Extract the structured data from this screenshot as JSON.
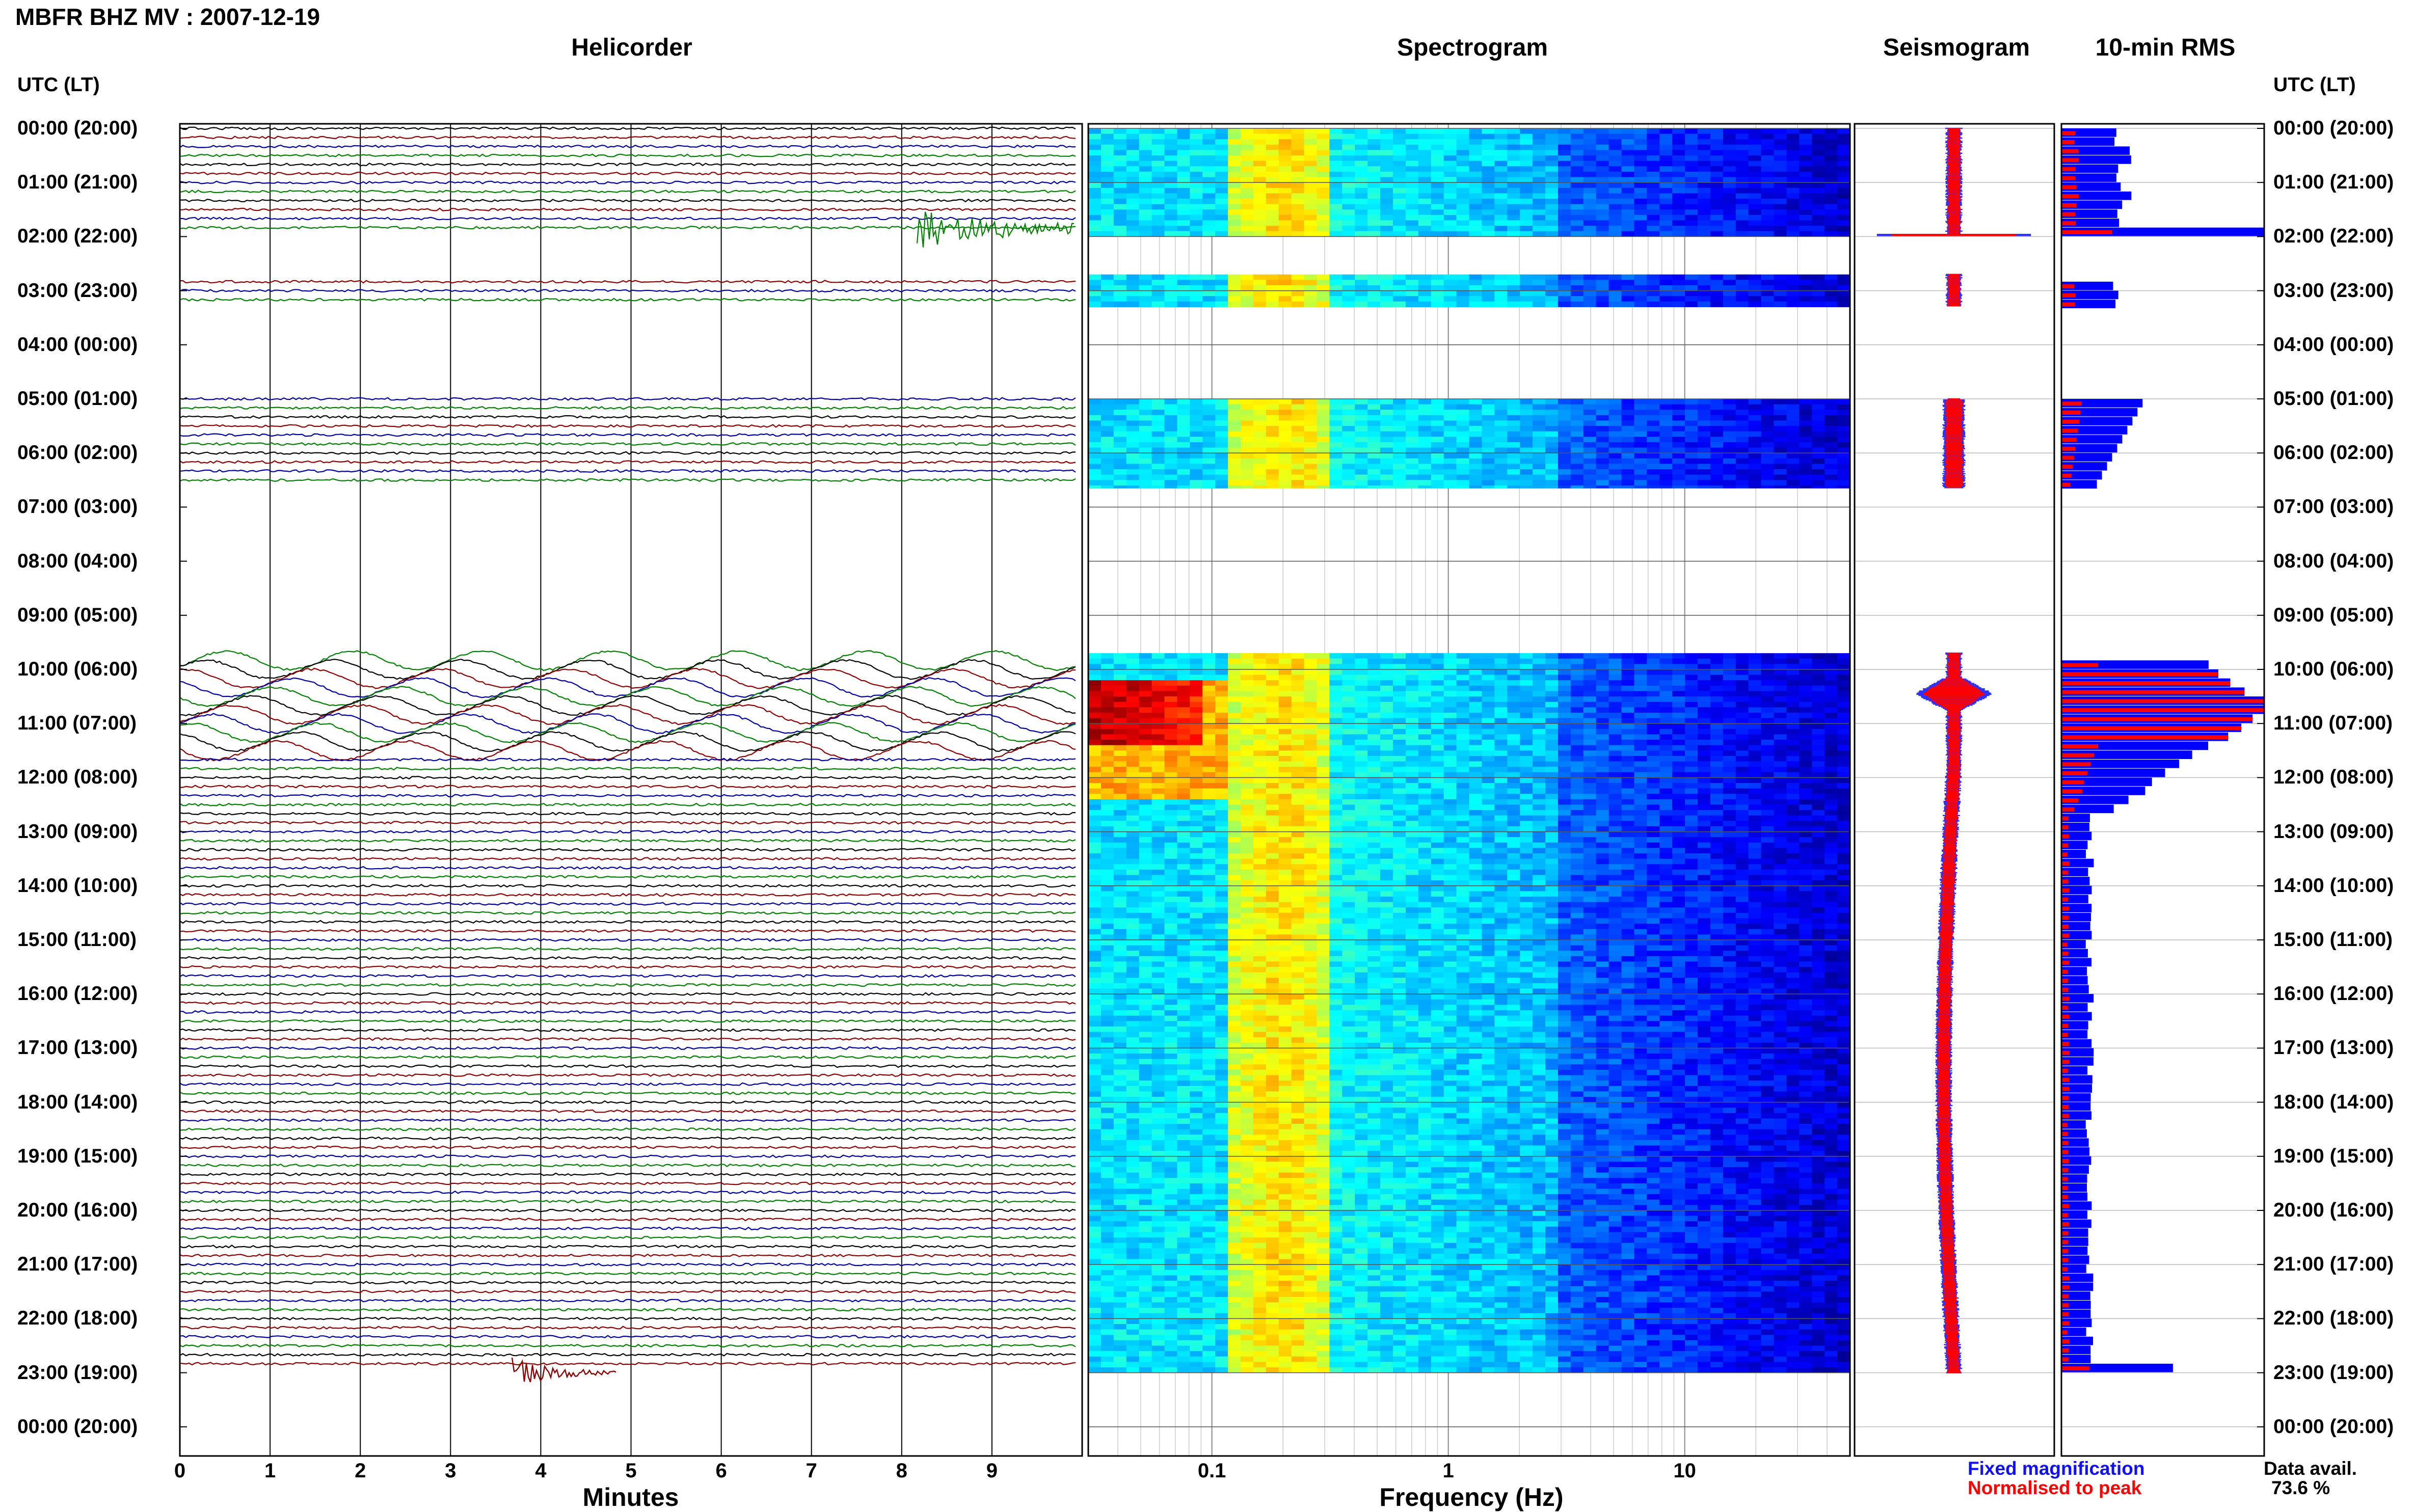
{
  "header": {
    "title": "MBFR BHZ MV : 2007-12-19"
  },
  "columns": {
    "helicorder": "Helicorder",
    "spectrogram": "Spectrogram",
    "seismogram": "Seismogram",
    "rms": "10-min RMS"
  },
  "time_axis": {
    "title_left": "UTC (LT)",
    "title_right": "UTC (LT)",
    "labels": [
      "00:00 (20:00)",
      "01:00 (21:00)",
      "02:00 (22:00)",
      "03:00 (23:00)",
      "04:00 (00:00)",
      "05:00 (01:00)",
      "06:00 (02:00)",
      "07:00 (03:00)",
      "08:00 (04:00)",
      "09:00 (05:00)",
      "10:00 (06:00)",
      "11:00 (07:00)",
      "12:00 (08:00)",
      "13:00 (09:00)",
      "14:00 (10:00)",
      "15:00 (11:00)",
      "16:00 (12:00)",
      "17:00 (13:00)",
      "18:00 (14:00)",
      "19:00 (15:00)",
      "20:00 (16:00)",
      "21:00 (17:00)",
      "22:00 (18:00)",
      "23:00 (19:00)",
      "00:00 (20:00)"
    ]
  },
  "helicorder_axis": {
    "ticks": [
      "0",
      "1",
      "2",
      "3",
      "4",
      "5",
      "6",
      "7",
      "8",
      "9"
    ],
    "label": "Minutes",
    "trace_colors": [
      "#000000",
      "#8b0000",
      "#0000a0",
      "#008000"
    ]
  },
  "spectrogram_axis": {
    "ticks": [
      "0.1",
      "1",
      "10"
    ],
    "label": "Frequency (Hz)"
  },
  "data_segments_hours": [
    [
      0,
      2
    ],
    [
      2.7,
      3.3
    ],
    [
      5,
      6.65
    ],
    [
      9.7,
      23
    ]
  ],
  "legend": {
    "fixed": "Fixed magnification",
    "normalised": "Normalised to peak",
    "fixed_color": "#1010ff",
    "normalised_color": "#ff0000"
  },
  "availability": {
    "label": "Data avail.",
    "value": "73.6 %"
  }
}
